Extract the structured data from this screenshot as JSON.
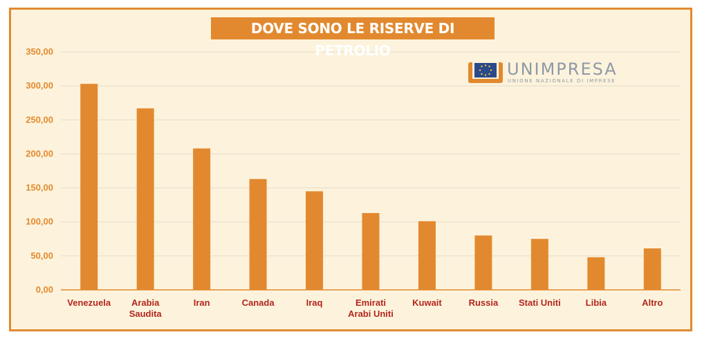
{
  "chart_data": {
    "type": "bar",
    "title": "DOVE SONO LE RISERVE DI PETROLIO",
    "categories": [
      [
        "Venezuela"
      ],
      [
        "Arabia",
        "Saudita"
      ],
      [
        "Iran"
      ],
      [
        "Canada"
      ],
      [
        "Iraq"
      ],
      [
        "Emirati",
        "Arabi Uniti"
      ],
      [
        "Kuwait"
      ],
      [
        "Russia"
      ],
      [
        "Stati Uniti"
      ],
      [
        "Libia"
      ],
      [
        "Altro"
      ]
    ],
    "values": [
      303,
      267,
      208,
      163,
      145,
      113,
      101,
      80,
      75,
      48,
      61
    ],
    "ylim": [
      0,
      350
    ],
    "yticks": [
      "0,00",
      "50,00",
      "100,00",
      "150,00",
      "200,00",
      "250,00",
      "300,00",
      "350,00"
    ],
    "grid": true,
    "bar_color": "#e2892f",
    "xlabel": "",
    "ylabel": ""
  },
  "logo": {
    "name": "UNIMPRESA",
    "subtitle": "UNIONE NAZIONALE DI IMPRESE",
    "colors": {
      "orange": "#e2892f",
      "blue": "#2b4a8b",
      "gray": "#8d99a6"
    }
  }
}
